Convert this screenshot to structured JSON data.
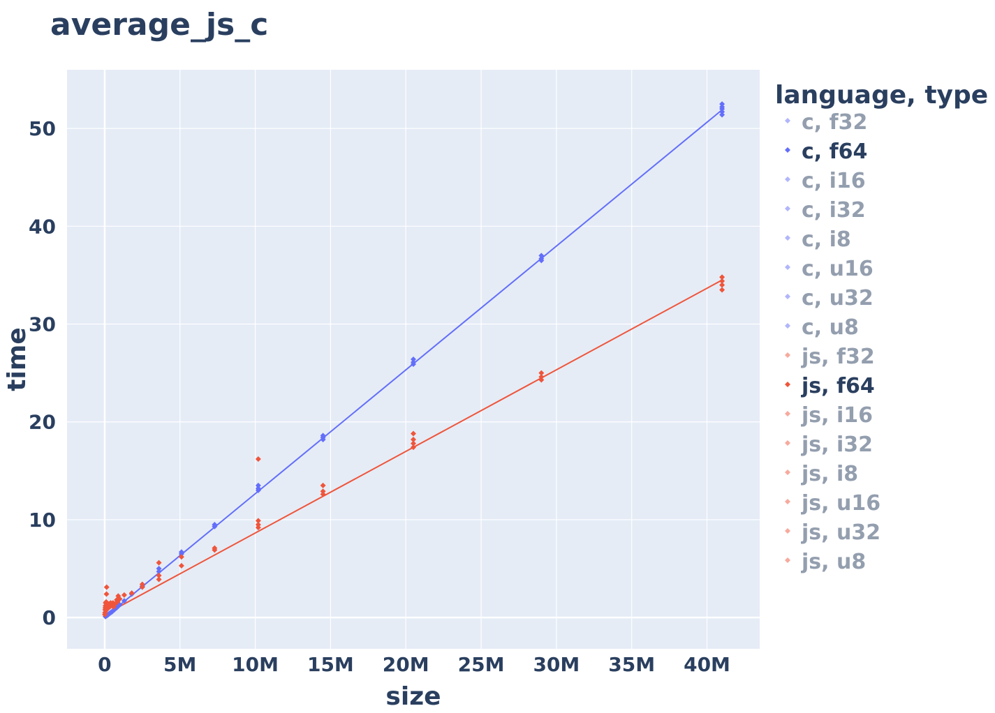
{
  "chart_data": {
    "type": "scatter",
    "title": "average_js_c",
    "xlabel": "size",
    "ylabel": "time",
    "xlim": [
      -2500000,
      43500000
    ],
    "ylim": [
      -3.2,
      56
    ],
    "x_ticks": [
      {
        "value": 0,
        "label": "0"
      },
      {
        "value": 5000000,
        "label": "5M"
      },
      {
        "value": 10000000,
        "label": "10M"
      },
      {
        "value": 15000000,
        "label": "15M"
      },
      {
        "value": 20000000,
        "label": "20M"
      },
      {
        "value": 25000000,
        "label": "25M"
      },
      {
        "value": 30000000,
        "label": "30M"
      },
      {
        "value": 35000000,
        "label": "35M"
      },
      {
        "value": 40000000,
        "label": "40M"
      }
    ],
    "y_ticks": [
      {
        "value": 0,
        "label": "0"
      },
      {
        "value": 10,
        "label": "10"
      },
      {
        "value": 20,
        "label": "20"
      },
      {
        "value": 30,
        "label": "30"
      },
      {
        "value": 40,
        "label": "40"
      },
      {
        "value": 50,
        "label": "50"
      }
    ],
    "grid": true,
    "legend_title": "language, type",
    "legend_position": "right",
    "series": [
      {
        "name": "c, f32",
        "color": "#636efa",
        "visible": false
      },
      {
        "name": "c, f64",
        "color": "#636efa",
        "visible": true,
        "marker": "diamond",
        "trendline": [
          [
            0,
            0.0
          ],
          [
            41000000,
            51.9
          ]
        ],
        "points": [
          [
            50000,
            0.1
          ],
          [
            100000,
            0.15
          ],
          [
            150000,
            0.2
          ],
          [
            200000,
            0.25
          ],
          [
            250000,
            0.3
          ],
          [
            300000,
            0.4
          ],
          [
            350000,
            0.45
          ],
          [
            400000,
            0.5
          ],
          [
            450000,
            0.55
          ],
          [
            500000,
            0.6
          ],
          [
            550000,
            0.7
          ],
          [
            600000,
            0.75
          ],
          [
            650000,
            0.8
          ],
          [
            700000,
            0.9
          ],
          [
            800000,
            1.0
          ],
          [
            900000,
            1.15
          ],
          [
            1000000,
            1.3
          ],
          [
            1300000,
            1.7
          ],
          [
            1800000,
            2.4
          ],
          [
            2500000,
            3.2
          ],
          [
            3600000,
            4.7
          ],
          [
            3600000,
            5.0
          ],
          [
            5100000,
            6.5
          ],
          [
            5100000,
            6.7
          ],
          [
            7300000,
            9.3
          ],
          [
            7300000,
            9.5
          ],
          [
            10200000,
            13.0
          ],
          [
            10200000,
            13.2
          ],
          [
            10200000,
            13.5
          ],
          [
            14500000,
            18.2
          ],
          [
            14500000,
            18.4
          ],
          [
            14500000,
            18.6
          ],
          [
            20500000,
            25.9
          ],
          [
            20500000,
            26.1
          ],
          [
            20500000,
            26.4
          ],
          [
            29000000,
            36.5
          ],
          [
            29000000,
            36.7
          ],
          [
            29000000,
            37.0
          ],
          [
            41000000,
            51.4
          ],
          [
            41000000,
            51.7
          ],
          [
            41000000,
            52.0
          ],
          [
            41000000,
            52.2
          ],
          [
            41000000,
            52.5
          ]
        ]
      },
      {
        "name": "c, i16",
        "color": "#636efa",
        "visible": false
      },
      {
        "name": "c, i32",
        "color": "#636efa",
        "visible": false
      },
      {
        "name": "c, i8",
        "color": "#636efa",
        "visible": false
      },
      {
        "name": "c, u16",
        "color": "#636efa",
        "visible": false
      },
      {
        "name": "c, u32",
        "color": "#636efa",
        "visible": false
      },
      {
        "name": "c, u8",
        "color": "#636efa",
        "visible": false
      },
      {
        "name": "js, f32",
        "color": "#ef553b",
        "visible": false
      },
      {
        "name": "js, f64",
        "color": "#ef553b",
        "visible": true,
        "marker": "diamond",
        "trendline": [
          [
            0,
            0.3
          ],
          [
            41000000,
            34.5
          ]
        ],
        "points": [
          [
            10000,
            0.3
          ],
          [
            20000,
            0.5
          ],
          [
            30000,
            0.8
          ],
          [
            40000,
            1.0
          ],
          [
            50000,
            1.2
          ],
          [
            60000,
            1.5
          ],
          [
            80000,
            0.7
          ],
          [
            100000,
            1.6
          ],
          [
            120000,
            2.4
          ],
          [
            130000,
            3.1
          ],
          [
            150000,
            1.1
          ],
          [
            180000,
            1.3
          ],
          [
            200000,
            0.9
          ],
          [
            250000,
            1.2
          ],
          [
            300000,
            1.4
          ],
          [
            350000,
            1.1
          ],
          [
            400000,
            1.5
          ],
          [
            450000,
            1.3
          ],
          [
            500000,
            1.2
          ],
          [
            550000,
            1.5
          ],
          [
            600000,
            1.1
          ],
          [
            700000,
            1.4
          ],
          [
            800000,
            1.8
          ],
          [
            850000,
            1.6
          ],
          [
            900000,
            2.2
          ],
          [
            1000000,
            1.9
          ],
          [
            1300000,
            2.3
          ],
          [
            1800000,
            2.5
          ],
          [
            2500000,
            3.1
          ],
          [
            2500000,
            3.4
          ],
          [
            3600000,
            3.9
          ],
          [
            3600000,
            4.3
          ],
          [
            3600000,
            5.6
          ],
          [
            5100000,
            5.3
          ],
          [
            5100000,
            6.2
          ],
          [
            7300000,
            6.9
          ],
          [
            7300000,
            7.1
          ],
          [
            10200000,
            9.2
          ],
          [
            10200000,
            9.5
          ],
          [
            10200000,
            9.9
          ],
          [
            10200000,
            16.2
          ],
          [
            14500000,
            12.6
          ],
          [
            14500000,
            12.9
          ],
          [
            14500000,
            13.5
          ],
          [
            20500000,
            17.4
          ],
          [
            20500000,
            17.8
          ],
          [
            20500000,
            18.2
          ],
          [
            20500000,
            18.8
          ],
          [
            29000000,
            24.3
          ],
          [
            29000000,
            24.6
          ],
          [
            29000000,
            25.0
          ],
          [
            41000000,
            33.5
          ],
          [
            41000000,
            34.0
          ],
          [
            41000000,
            34.4
          ],
          [
            41000000,
            34.8
          ]
        ]
      },
      {
        "name": "js, i16",
        "color": "#ef553b",
        "visible": false
      },
      {
        "name": "js, i32",
        "color": "#ef553b",
        "visible": false
      },
      {
        "name": "js, i8",
        "color": "#ef553b",
        "visible": false
      },
      {
        "name": "js, u16",
        "color": "#ef553b",
        "visible": false
      },
      {
        "name": "js, u32",
        "color": "#ef553b",
        "visible": false
      },
      {
        "name": "js, u8",
        "color": "#ef553b",
        "visible": false
      }
    ],
    "colors": {
      "plot_bg": "#e5ecf6",
      "grid": "#ffffff",
      "text": "#2a3f5f",
      "legend_hidden_text": "#9aa4b3"
    }
  }
}
